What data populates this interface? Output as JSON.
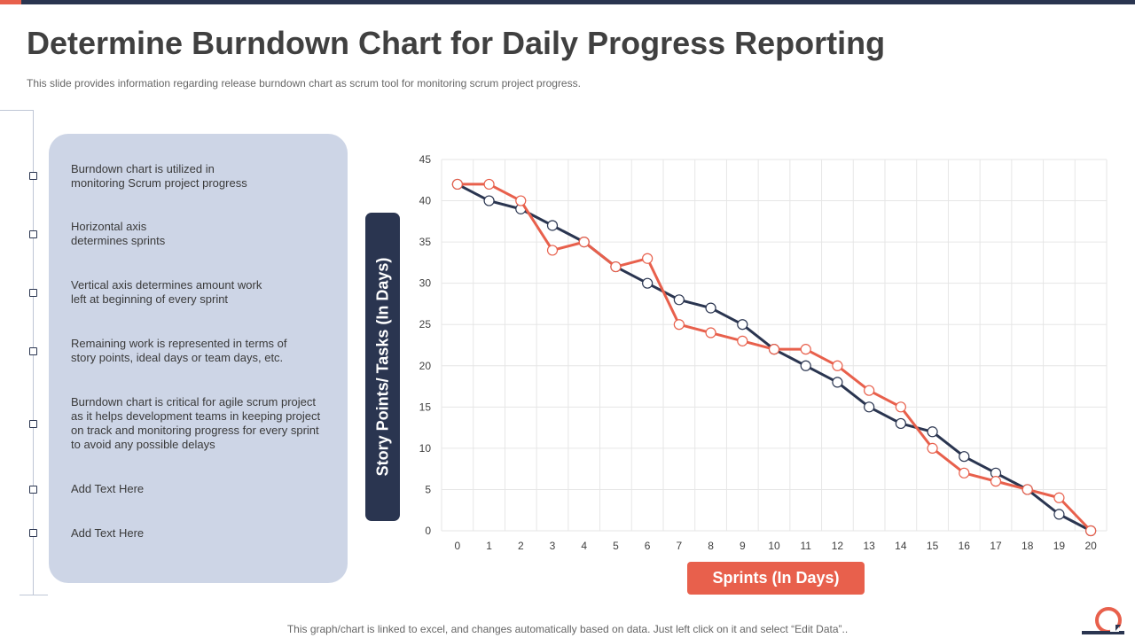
{
  "slide": {
    "title": "Determine Burndown Chart for Daily Progress Reporting",
    "subtitle": "This slide provides information regarding release burndown chart as scrum tool for monitoring scrum project progress.",
    "footer": "This graph/chart is linked to excel,  and changes automatically based on data. Just left click on it and select “Edit Data”.."
  },
  "bullets": [
    "Burndown chart is utilized in\nmonitoring Scrum project progress",
    "Horizontal axis\ndetermines sprints",
    "Vertical axis determines amount work\nleft at beginning of every sprint",
    "Remaining work is represented  in terms of\nstory points, ideal days or team days, etc.",
    "Burndown chart is critical for agile scrum project\nas it helps development  teams in keeping project\non track and monitoring progress for every sprint\nto avoid any possible delays",
    "Add Text Here",
    "Add Text Here"
  ],
  "colors": {
    "navy": "#2a3550",
    "coral": "#e8604c",
    "panel": "#cdd5e6"
  },
  "chart_data": {
    "type": "line",
    "xlabel": "Sprints (In Days)",
    "ylabel": "Story Points/ Tasks (In Days)",
    "x": [
      0,
      1,
      2,
      3,
      4,
      5,
      6,
      7,
      8,
      9,
      10,
      11,
      12,
      13,
      14,
      15,
      16,
      17,
      18,
      19,
      20
    ],
    "ylim": [
      0,
      45
    ],
    "yticks": [
      0,
      5,
      10,
      15,
      20,
      25,
      30,
      35,
      40,
      45
    ],
    "grid": true,
    "series": [
      {
        "color": "#2a3550",
        "values": [
          42,
          40,
          39,
          37,
          35,
          32,
          30,
          28,
          27,
          25,
          22,
          20,
          18,
          15,
          13,
          12,
          9,
          7,
          5,
          2,
          0
        ]
      },
      {
        "color": "#e8604c",
        "values": [
          42,
          42,
          40,
          34,
          35,
          32,
          33,
          25,
          24,
          23,
          22,
          22,
          20,
          17,
          15,
          10,
          7,
          6,
          5,
          4,
          0
        ]
      }
    ]
  }
}
